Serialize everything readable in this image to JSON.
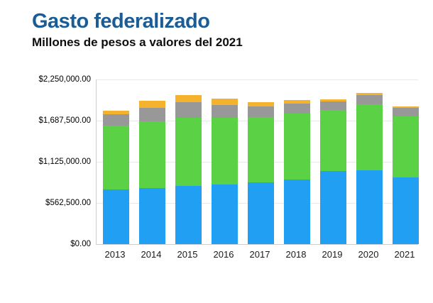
{
  "header": {
    "title": "Gasto federalizado",
    "subtitle": "Millones de pesos a valores del 2021"
  },
  "chart_data": {
    "type": "bar",
    "stacked": true,
    "title": "Gasto federalizado",
    "subtitle": "Millones de pesos a valores del 2021",
    "xlabel": "",
    "ylabel": "",
    "ylim": [
      0,
      2250000
    ],
    "grid": true,
    "legend": "none",
    "categories": [
      "2013",
      "2014",
      "2015",
      "2016",
      "2017",
      "2018",
      "2019",
      "2020",
      "2021"
    ],
    "series": [
      {
        "name": "series-blue",
        "color": "#219FF2",
        "values": [
          750000,
          769000,
          793000,
          818000,
          847000,
          885000,
          997000,
          1011000,
          910000
        ]
      },
      {
        "name": "series-green",
        "color": "#5BD146",
        "values": [
          870000,
          905000,
          936000,
          905000,
          892000,
          895000,
          839000,
          898000,
          839000
        ]
      },
      {
        "name": "series-gray",
        "color": "#989898",
        "values": [
          151000,
          193000,
          213000,
          177000,
          138000,
          142000,
          112000,
          130000,
          109000
        ]
      },
      {
        "name": "series-yellow",
        "color": "#F5B32D",
        "values": [
          55000,
          97000,
          97000,
          87000,
          61000,
          51000,
          33000,
          25000,
          26000
        ]
      }
    ],
    "totals": [
      1826000,
      1964000,
      2039000,
      1987000,
      1938000,
      1973000,
      1981000,
      2064000,
      1884000
    ],
    "y_ticks": [
      "$2,250,000.00",
      "$1,687,500.00",
      "$1,125,000.00",
      "$562,500.00",
      "$0.00"
    ],
    "y_tick_values": [
      2250000,
      1687500,
      1125000,
      562500,
      0
    ]
  },
  "colors": {
    "title": "#1A5C96",
    "axis_line": "#CDCDCD",
    "gridline": "#E8E8E8",
    "background": "#FFFFFF"
  }
}
